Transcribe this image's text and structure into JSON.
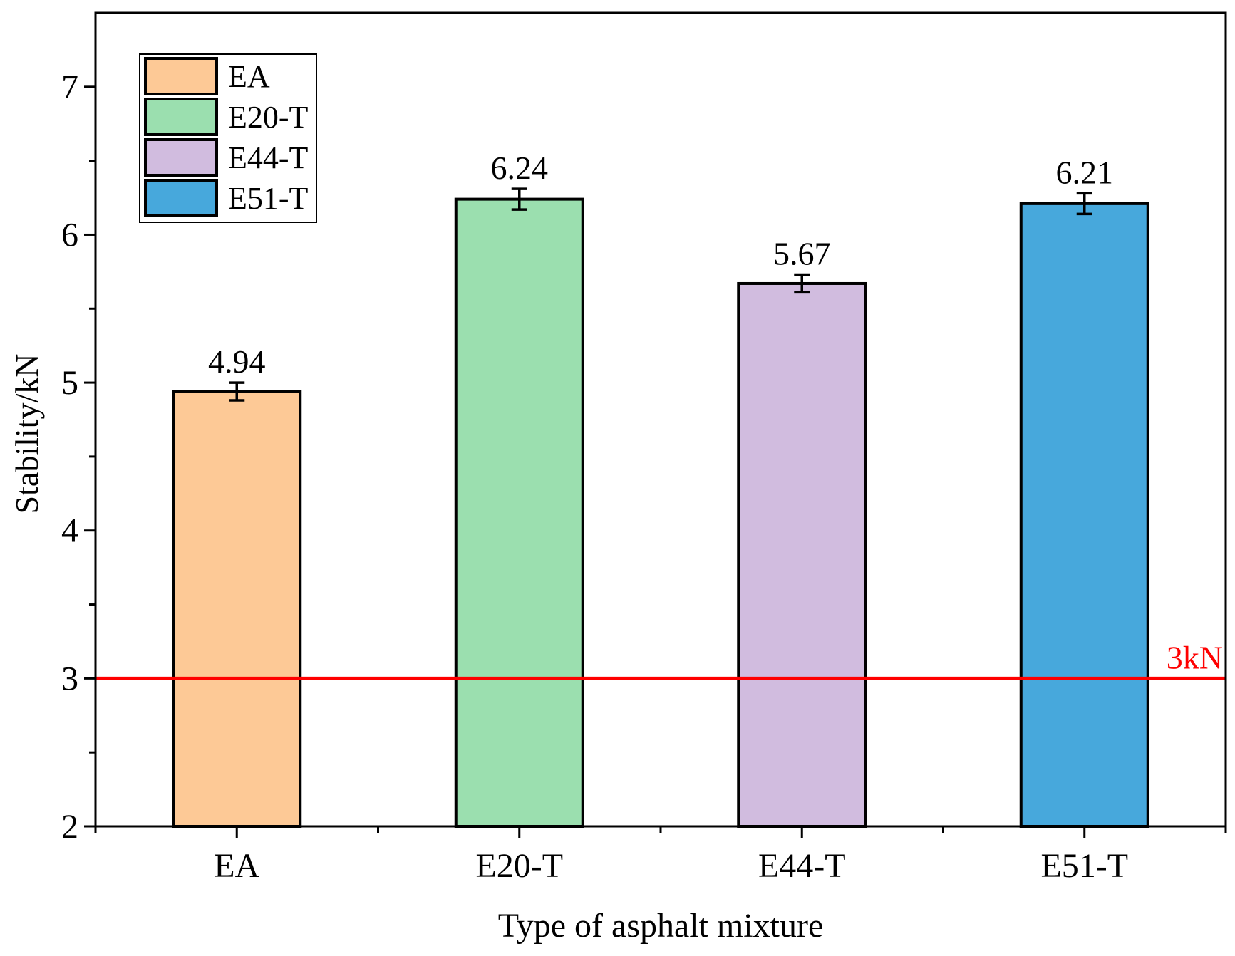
{
  "chart_data": {
    "type": "bar",
    "title": "",
    "xlabel": "Type of asphalt mixture",
    "ylabel": "Stability/kN",
    "categories": [
      "EA",
      "E20-T",
      "E44-T",
      "E51-T"
    ],
    "values": [
      4.94,
      6.24,
      5.67,
      6.21
    ],
    "value_labels": [
      "4.94",
      "6.24",
      "5.67",
      "6.21"
    ],
    "errors": [
      0.06,
      0.07,
      0.06,
      0.07
    ],
    "ylim": [
      2,
      7.5
    ],
    "yticks": [
      2,
      3,
      4,
      5,
      6,
      7
    ],
    "ytick_labels": [
      "2",
      "3",
      "4",
      "5",
      "6",
      "7"
    ],
    "colors": [
      "#FDC996",
      "#9BDFAF",
      "#D1BCDF",
      "#47A8DC"
    ],
    "legend": {
      "position": "top-left",
      "entries": [
        "EA",
        "E20-T",
        "E44-T",
        "E51-T"
      ]
    },
    "reference_line": {
      "value": 3,
      "label": "3kN",
      "color": "#FF0000"
    },
    "grid": false
  }
}
